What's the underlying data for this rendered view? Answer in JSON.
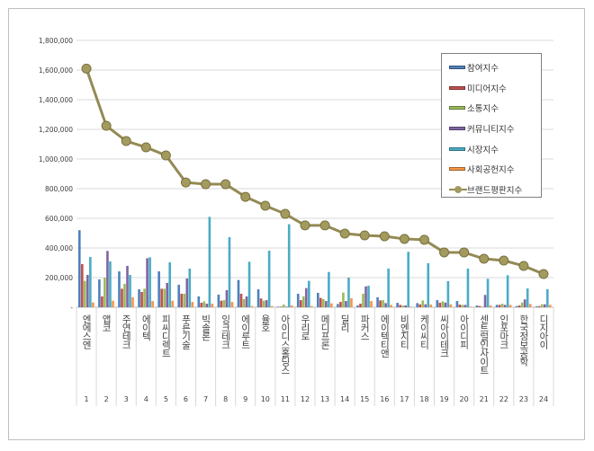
{
  "chart_data": {
    "type": "bar",
    "title": "",
    "xlabel": "",
    "ylabel": "",
    "ylim": [
      0,
      1800000
    ],
    "yticks": [
      "-",
      "200,000",
      "400,000",
      "600,000",
      "800,000",
      "1,000,000",
      "1,200,000",
      "1,400,000",
      "1,600,000",
      "1,800,000"
    ],
    "grid": true,
    "legend_position": "top-right",
    "ranks": [
      "1",
      "2",
      "3",
      "4",
      "5",
      "6",
      "7",
      "8",
      "9",
      "10",
      "11",
      "12",
      "13",
      "14",
      "15",
      "16",
      "17",
      "18",
      "19",
      "20",
      "21",
      "22",
      "23",
      "24"
    ],
    "categories": [
      "엔에스엔",
      "앱코",
      "주연테크",
      "에이텍",
      "피씨디렉트",
      "푸른기술",
      "빅솔론",
      "잉크테크",
      "에이루트",
      "율호",
      "아이디스홀딩스",
      "우리로",
      "메디프론",
      "딜리",
      "파커스",
      "에이텍티앤",
      "비엔지티",
      "케이씨티",
      "씨아이테크",
      "아이디피",
      "센트럴인사이트",
      "인포마크",
      "한국정보공학",
      "디지아이"
    ],
    "series": [
      {
        "name": "참여지수",
        "type": "bar",
        "color": "#4F81BD",
        "values": [
          520000,
          188000,
          242000,
          121000,
          242000,
          152000,
          73000,
          85000,
          184000,
          121000,
          4000,
          91000,
          97000,
          22000,
          12000,
          67000,
          30000,
          28000,
          48000,
          42000,
          12000,
          16000,
          8000,
          6000
        ]
      },
      {
        "name": "미디어지수",
        "type": "bar",
        "color": "#C0504D",
        "values": [
          291000,
          73000,
          125000,
          103000,
          125000,
          91000,
          30000,
          44000,
          91000,
          59000,
          4000,
          48000,
          63000,
          36000,
          24000,
          46000,
          16000,
          20000,
          30000,
          18000,
          8000,
          16000,
          12000,
          8000
        ]
      },
      {
        "name": "소통지수",
        "type": "bar",
        "color": "#9BBB59",
        "values": [
          178000,
          200000,
          158000,
          125000,
          125000,
          91000,
          40000,
          48000,
          55000,
          44000,
          18000,
          73000,
          55000,
          99000,
          91000,
          48000,
          12000,
          46000,
          40000,
          16000,
          4000,
          24000,
          32000,
          20000
        ]
      },
      {
        "name": "커뮤니티지수",
        "type": "bar",
        "color": "#8064A2",
        "values": [
          218000,
          380000,
          279000,
          331000,
          164000,
          194000,
          24000,
          115000,
          73000,
          48000,
          4000,
          129000,
          42000,
          42000,
          141000,
          28000,
          12000,
          20000,
          32000,
          16000,
          83000,
          16000,
          53000,
          20000
        ]
      },
      {
        "name": "시장지수",
        "type": "bar",
        "color": "#4BACC6",
        "values": [
          339000,
          309000,
          218000,
          337000,
          303000,
          261000,
          610000,
          473000,
          307000,
          382000,
          560000,
          178000,
          238000,
          200000,
          145000,
          261000,
          374000,
          297000,
          176000,
          261000,
          192000,
          216000,
          127000,
          121000
        ]
      },
      {
        "name": "사회공헌지수",
        "type": "bar",
        "color": "#F79646",
        "values": [
          32000,
          44000,
          67000,
          42000,
          44000,
          36000,
          24000,
          36000,
          8000,
          8000,
          12000,
          8000,
          26000,
          61000,
          42000,
          16000,
          4000,
          18000,
          20000,
          4000,
          12000,
          16000,
          22000,
          16000
        ]
      },
      {
        "name": "브랜드평판지수",
        "type": "line",
        "color": "#948A54",
        "values": [
          1610000,
          1224000,
          1121000,
          1079000,
          1024000,
          842000,
          830000,
          830000,
          745000,
          685000,
          630000,
          552000,
          552000,
          497000,
          485000,
          479000,
          461000,
          455000,
          370000,
          370000,
          327000,
          315000,
          279000,
          224000
        ]
      }
    ]
  }
}
